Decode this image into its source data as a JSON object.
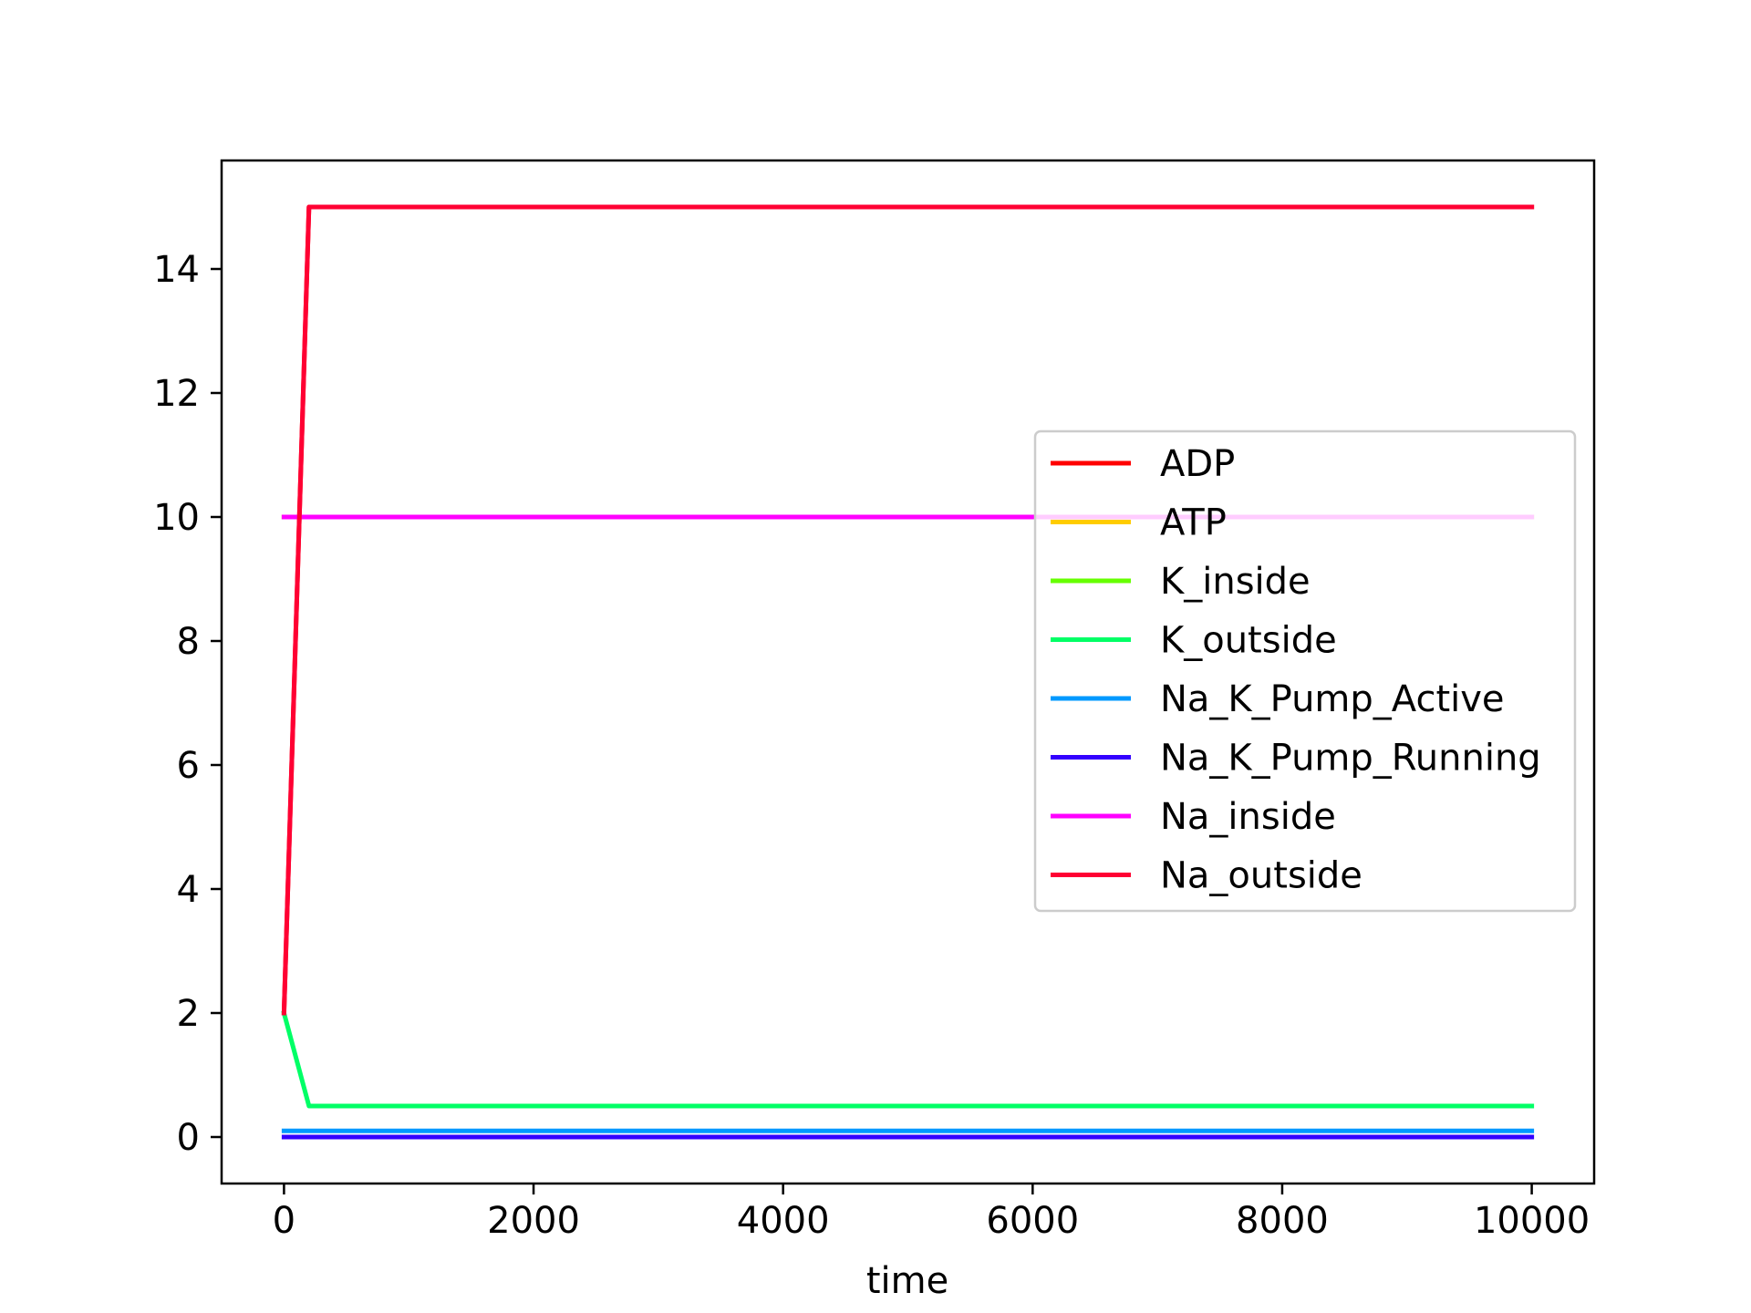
{
  "chart_data": {
    "type": "line",
    "title": "",
    "xlabel": "time",
    "ylabel": "",
    "xlim": [
      -500,
      10500
    ],
    "ylim": [
      -0.75,
      15.75
    ],
    "xticks": [
      0,
      2000,
      4000,
      6000,
      8000,
      10000
    ],
    "xtick_labels": [
      "0",
      "2000",
      "4000",
      "6000",
      "8000",
      "10000"
    ],
    "yticks": [
      0,
      2,
      4,
      6,
      8,
      10,
      12,
      14
    ],
    "ytick_labels": [
      "0",
      "2",
      "4",
      "6",
      "8",
      "10",
      "12",
      "14"
    ],
    "grid": false,
    "legend_position": "center-right",
    "series": [
      {
        "name": "ADP",
        "color": "#ff0000",
        "x": [
          0,
          200,
          10000
        ],
        "y": [
          2,
          15,
          15
        ]
      },
      {
        "name": "ATP",
        "color": "#ffcc00",
        "x": [
          0,
          200,
          10000
        ],
        "y": [
          10,
          10,
          10
        ]
      },
      {
        "name": "K_inside",
        "color": "#66ff00",
        "x": [
          0,
          200,
          10000
        ],
        "y": [
          10,
          10,
          10
        ]
      },
      {
        "name": "K_outside",
        "color": "#00ff66",
        "x": [
          0,
          200,
          10000
        ],
        "y": [
          2,
          0.5,
          0.5
        ]
      },
      {
        "name": "Na_K_Pump_Active",
        "color": "#0099ff",
        "x": [
          0,
          10000
        ],
        "y": [
          0.1,
          0.1
        ]
      },
      {
        "name": "Na_K_Pump_Running",
        "color": "#3300ff",
        "x": [
          0,
          10000
        ],
        "y": [
          0,
          0
        ]
      },
      {
        "name": "Na_inside",
        "color": "#ff00ff",
        "x": [
          0,
          200,
          10000
        ],
        "y": [
          10,
          10,
          10
        ]
      },
      {
        "name": "Na_outside",
        "color": "#ff0033",
        "x": [
          0,
          200,
          10000
        ],
        "y": [
          2,
          15,
          15
        ]
      }
    ]
  }
}
